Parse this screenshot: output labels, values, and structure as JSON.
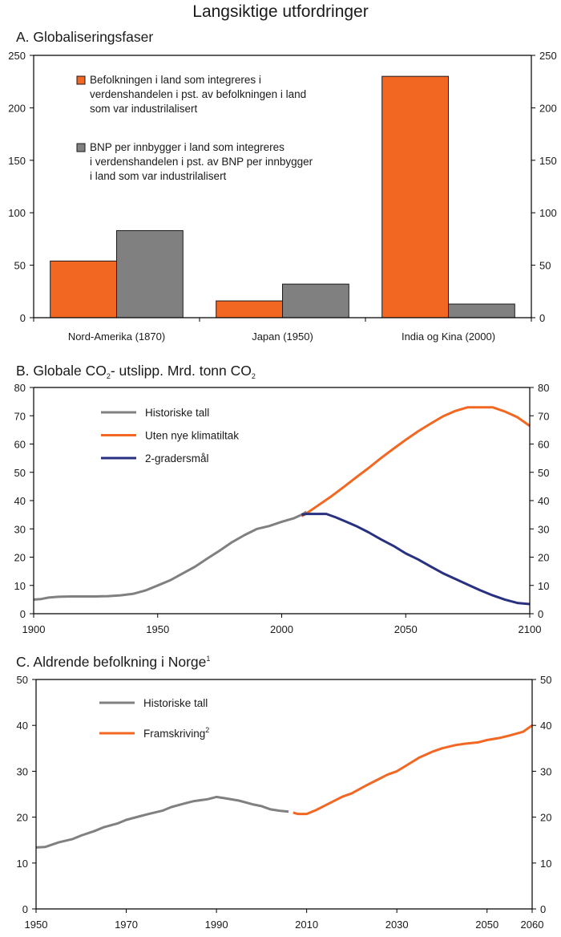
{
  "figure": {
    "title": "Langsiktige utfordringer"
  },
  "colors": {
    "orange": "#f26722",
    "gray": "#808080",
    "navy": "#283180",
    "axis": "#000000"
  },
  "chart_data": [
    {
      "type": "bar",
      "id": "A",
      "title": "A.  Globaliseringsfaser",
      "xlabel": "",
      "ylabel": "",
      "ylim": [
        0,
        250
      ],
      "yticks": [
        0,
        50,
        100,
        150,
        200,
        250
      ],
      "y_axis_right": true,
      "grid": false,
      "legend_position": "top-left",
      "categories": [
        "Nord-Amerika (1870)",
        "Japan (1950)",
        "India og Kina (2000)"
      ],
      "series": [
        {
          "name": "Befolkningen i land som integreres i verdenshandelen i pst. av befolkningen i land som var industrilalisert",
          "legend_lines": [
            "Befolkningen i land som integreres i",
            "verdenshandelen i pst. av befolkningen i land",
            "som var industrilalisert"
          ],
          "color": "#f26722",
          "values": [
            54,
            16,
            230
          ]
        },
        {
          "name": "BNP per innbygger i land som integreres i verdenshandelen i pst. av BNP per innbygger i land som var industrilalisert",
          "legend_lines": [
            "BNP per innbygger i land som integreres",
            "i verdenshandelen i pst. av BNP per innbygger",
            "i land som var industrilalisert"
          ],
          "color": "#808080",
          "values": [
            83,
            32,
            13
          ]
        }
      ]
    },
    {
      "type": "line",
      "id": "B",
      "title_parts": [
        "B.  Globale CO",
        "2",
        "- utslipp. Mrd. tonn CO",
        "2"
      ],
      "title": "B.  Globale CO2- utslipp. Mrd. tonn CO2",
      "xlabel": "",
      "ylabel": "",
      "xlim": [
        1900,
        2100
      ],
      "ylim": [
        0,
        80
      ],
      "xticks": [
        1900,
        1950,
        2000,
        2050,
        2100
      ],
      "yticks": [
        0,
        10,
        20,
        30,
        40,
        50,
        60,
        70,
        80
      ],
      "y_axis_right": true,
      "grid": false,
      "legend_position": "top-left",
      "series": [
        {
          "name": "Historiske tall",
          "color": "#808080",
          "x": [
            1900,
            1903,
            1906,
            1910,
            1915,
            1920,
            1925,
            1930,
            1935,
            1940,
            1945,
            1950,
            1955,
            1960,
            1965,
            1970,
            1975,
            1980,
            1985,
            1990,
            1995,
            2000,
            2005,
            2008,
            2010
          ],
          "y": [
            5.0,
            5.2,
            5.7,
            6.0,
            6.1,
            6.1,
            6.1,
            6.2,
            6.5,
            7.0,
            8.2,
            10.0,
            11.8,
            14.2,
            16.6,
            19.5,
            22.3,
            25.3,
            27.8,
            30.0,
            31.0,
            32.5,
            33.8,
            35.0,
            36.0
          ]
        },
        {
          "name": "Uten nye klimatiltak",
          "color": "#f26722",
          "x": [
            2008,
            2010,
            2015,
            2020,
            2025,
            2030,
            2035,
            2040,
            2045,
            2050,
            2055,
            2060,
            2065,
            2070,
            2075,
            2080,
            2085,
            2090,
            2095,
            2100
          ],
          "y": [
            34.5,
            35.5,
            38.5,
            41.5,
            44.8,
            48.2,
            51.5,
            55.0,
            58.3,
            61.5,
            64.5,
            67.2,
            69.8,
            71.7,
            73.0,
            73.0,
            73.0,
            71.5,
            69.5,
            66.4
          ]
        },
        {
          "name": "2-gradersmål",
          "color": "#283180",
          "x": [
            2008,
            2010,
            2018,
            2022,
            2026,
            2030,
            2035,
            2040,
            2045,
            2050,
            2055,
            2060,
            2065,
            2070,
            2075,
            2080,
            2085,
            2090,
            2095,
            2100
          ],
          "y": [
            35.0,
            35.3,
            35.3,
            34.0,
            32.5,
            31.0,
            28.8,
            26.3,
            24.0,
            21.3,
            19.2,
            16.7,
            14.3,
            12.3,
            10.3,
            8.3,
            6.5,
            5.0,
            3.8,
            3.4
          ]
        }
      ]
    },
    {
      "type": "line",
      "id": "C",
      "title": "C.  Aldrende befolkning i Norge",
      "title_sup": "1",
      "xlabel": "",
      "ylabel": "",
      "xlim": [
        1950,
        2060
      ],
      "ylim": [
        0,
        50
      ],
      "xticks": [
        1950,
        1970,
        1990,
        2010,
        2030,
        2050,
        2060
      ],
      "yticks": [
        0,
        10,
        20,
        30,
        40,
        50
      ],
      "y_axis_right": true,
      "grid": false,
      "legend_position": "top-left",
      "series": [
        {
          "name": "Historiske tall",
          "name_sup": "",
          "color": "#808080",
          "x": [
            1950,
            1952,
            1955,
            1958,
            1960,
            1963,
            1965,
            1968,
            1970,
            1973,
            1975,
            1978,
            1980,
            1983,
            1985,
            1988,
            1990,
            1992,
            1995,
            1998,
            2000,
            2002,
            2004,
            2006
          ],
          "y": [
            13.4,
            13.5,
            14.5,
            15.2,
            16.0,
            17.0,
            17.8,
            18.6,
            19.4,
            20.2,
            20.7,
            21.4,
            22.2,
            23.0,
            23.5,
            23.9,
            24.4,
            24.1,
            23.6,
            22.8,
            22.4,
            21.7,
            21.4,
            21.2
          ]
        },
        {
          "name": "Framskriving",
          "name_sup": "2",
          "color": "#f26722",
          "x": [
            2007,
            2008,
            2010,
            2012,
            2015,
            2018,
            2020,
            2023,
            2025,
            2028,
            2030,
            2033,
            2035,
            2038,
            2040,
            2043,
            2045,
            2048,
            2050,
            2053,
            2055,
            2058,
            2060
          ],
          "y": [
            21.0,
            20.7,
            20.7,
            21.5,
            23.0,
            24.5,
            25.2,
            26.8,
            27.8,
            29.3,
            30.0,
            31.8,
            33.0,
            34.3,
            35.0,
            35.7,
            36.0,
            36.3,
            36.8,
            37.3,
            37.8,
            38.6,
            40.0
          ]
        }
      ]
    }
  ]
}
